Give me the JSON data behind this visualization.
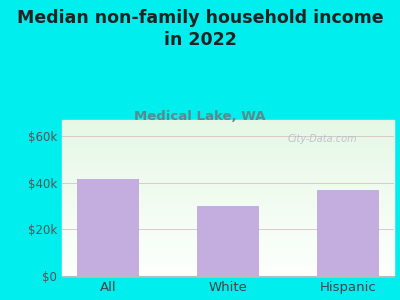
{
  "title": "Median non-family household income\nin 2022",
  "subtitle": "Medical Lake, WA",
  "categories": [
    "All",
    "White",
    "Hispanic"
  ],
  "values": [
    41500,
    30000,
    37000
  ],
  "bar_color": "#C4AEE0",
  "background_color": "#00EEEE",
  "yticks": [
    0,
    20000,
    40000,
    60000
  ],
  "ylim": [
    0,
    67000
  ],
  "title_fontsize": 12.5,
  "subtitle_fontsize": 9.5,
  "tick_fontsize": 8.5,
  "xtick_fontsize": 9.5,
  "title_color": "#222222",
  "subtitle_color": "#5B8A8A",
  "tick_color": "#555555",
  "xtick_color": "#444444",
  "gridline_color": "#ddc8c8",
  "watermark_text": "City-Data.com",
  "watermark_color": "#b8b8c8"
}
